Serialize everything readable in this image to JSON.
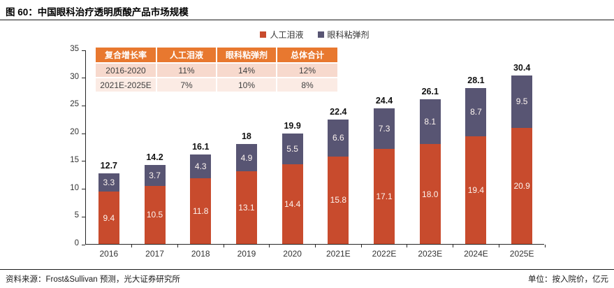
{
  "header": {
    "title": "图 60：中国眼科治疗透明质酸产品市场规模"
  },
  "legend": [
    {
      "label": "人工泪液",
      "color": "#c84b2d"
    },
    {
      "label": "眼科粘弹剂",
      "color": "#585573"
    }
  ],
  "chart_data": {
    "type": "bar",
    "stacked": true,
    "title": "中国眼科治疗透明质酸产品市场规模",
    "unit": "亿元",
    "categories": [
      "2016",
      "2017",
      "2018",
      "2019",
      "2020",
      "2021E",
      "2022E",
      "2023E",
      "2024E",
      "2025E"
    ],
    "series": [
      {
        "name": "人工泪液",
        "color": "#c84b2d",
        "values": [
          9.4,
          10.5,
          11.8,
          13.1,
          14.4,
          15.8,
          17.1,
          18.0,
          19.4,
          20.9
        ],
        "labels": [
          "9.4",
          "10.5",
          "11.8",
          "13.1",
          "14.4",
          "15.8",
          "17.1",
          "18.0",
          "19.4",
          "20.9"
        ]
      },
      {
        "name": "眼科粘弹剂",
        "color": "#585573",
        "values": [
          3.3,
          3.7,
          4.3,
          4.9,
          5.5,
          6.6,
          7.3,
          8.1,
          8.7,
          9.5
        ],
        "labels": [
          "3.3",
          "3.7",
          "4.3",
          "4.9",
          "5.5",
          "6.6",
          "7.3",
          "8.1",
          "8.7",
          "9.5"
        ]
      }
    ],
    "totals": [
      "12.7",
      "14.2",
      "16.1",
      "18",
      "19.9",
      "22.4",
      "24.4",
      "26.1",
      "28.1",
      "30.4"
    ],
    "ylim": [
      0,
      35
    ],
    "yticks": [
      0,
      5,
      10,
      15,
      20,
      25,
      30,
      35
    ],
    "grid": false,
    "legend_position": "top"
  },
  "growth_table": {
    "headers": [
      "复合增长率",
      "人工泪液",
      "眼科粘弹剂",
      "总体合计"
    ],
    "rows": [
      [
        "2016-2020",
        "11%",
        "14%",
        "12%"
      ],
      [
        "2021E-2025E",
        "7%",
        "10%",
        "8%"
      ]
    ]
  },
  "footer": {
    "source": "资料来源：Frost&Sullivan 预测，光大证券研究所",
    "unit": "单位：按入院价，亿元"
  }
}
